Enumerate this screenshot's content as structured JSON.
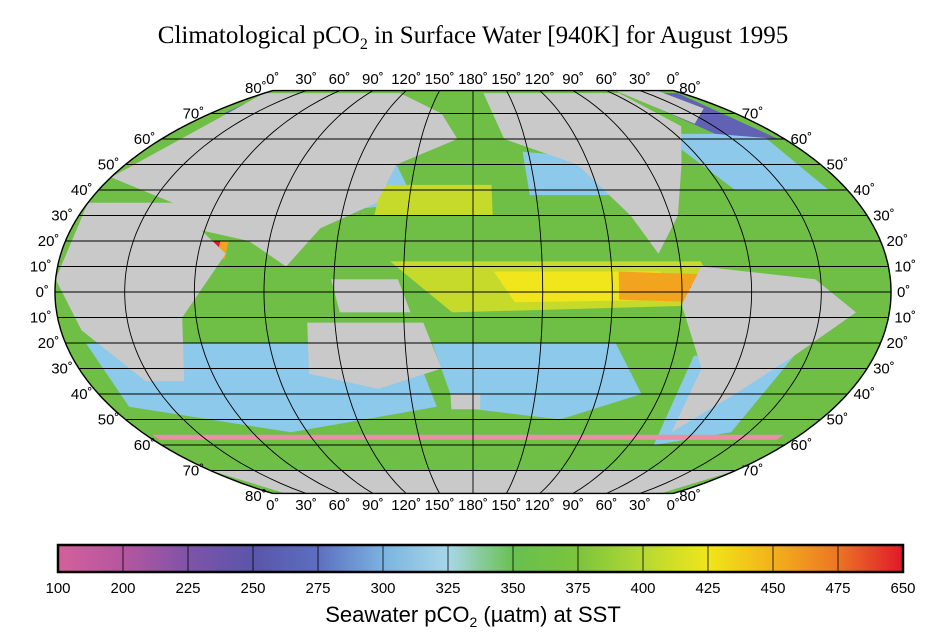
{
  "title_main": "Climatological pCO",
  "title_sub": "2",
  "title_rest": " in Surface Water [940K] for August 1995",
  "top_lon_labels": [
    "0˚",
    "30˚",
    "60˚",
    "90˚",
    "120˚",
    "150˚",
    "180˚",
    "150˚",
    "120˚",
    "90˚",
    "60˚",
    "30˚",
    "0˚"
  ],
  "bottom_lon_labels": [
    "0˚",
    "30˚",
    "60˚",
    "90˚",
    "120˚",
    "150˚",
    "180˚",
    "150˚",
    "120˚",
    "90˚",
    "60˚",
    "30˚",
    "0˚"
  ],
  "lat_labels_left": [
    "80˚",
    "70˚",
    "60˚",
    "50˚",
    "40˚",
    "30˚",
    "20˚",
    "10˚",
    "0˚",
    "10˚",
    "20˚",
    "30˚",
    "40˚",
    "50˚",
    "60˚",
    "70˚",
    "80˚"
  ],
  "lat_labels_right": [
    "80˚",
    "70˚",
    "60˚",
    "50˚",
    "40˚",
    "30˚",
    "20˚",
    "10˚",
    "0˚",
    "10˚",
    "20˚",
    "30˚",
    "40˚",
    "50˚",
    "60˚",
    "70˚",
    "80˚"
  ],
  "colorbar": {
    "tick_labels": [
      "100",
      "200",
      "225",
      "250",
      "275",
      "300",
      "325",
      "350",
      "375",
      "400",
      "425",
      "450",
      "475",
      "650"
    ],
    "colors": [
      "#d4609b",
      "#b5569f",
      "#7e54a8",
      "#5a55ab",
      "#5d6fc0",
      "#7ab3e0",
      "#a8d7e8",
      "#68c04e",
      "#7cc43c",
      "#b5d933",
      "#f0e61a",
      "#f3b11a",
      "#ec7524",
      "#e0182a"
    ],
    "title_main": "Seawater pCO",
    "title_sub": "2",
    "title_rest": " (µatm) at SST"
  },
  "map_colors": {
    "ocean_base": "#6fbf46",
    "land": "#c9c9c9",
    "low": "#8cc9ea",
    "very_low": "#6262b5",
    "mid_high": "#c6da2c",
    "high": "#f1e51c",
    "higher": "#f2a41f",
    "highest": "#e2182d",
    "ice_edge": "#ec8ea6",
    "grid": "#000000"
  }
}
